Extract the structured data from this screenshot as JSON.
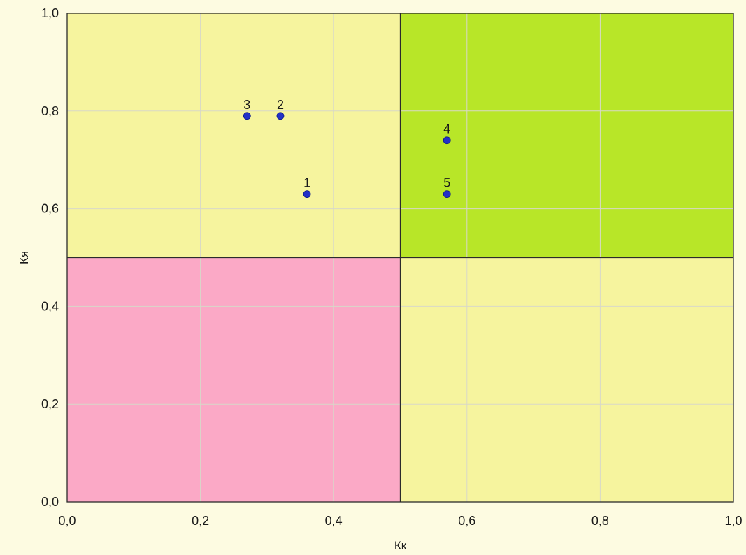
{
  "chart_data": {
    "type": "scatter",
    "xlabel": "Кк",
    "ylabel": "Кя",
    "xlim": [
      0,
      1
    ],
    "ylim": [
      0,
      1
    ],
    "x_ticks": [
      "0,0",
      "0,2",
      "0,4",
      "0,6",
      "0,8",
      "1,0"
    ],
    "y_ticks": [
      "0,0",
      "0,2",
      "0,4",
      "0,6",
      "0,8",
      "1,0"
    ],
    "tick_values": [
      0,
      0.2,
      0.4,
      0.6,
      0.8,
      1.0
    ],
    "grid": true,
    "quadrants": [
      {
        "x": [
          0,
          0.5
        ],
        "y": [
          0.5,
          1
        ],
        "color": "#f6f49e"
      },
      {
        "x": [
          0.5,
          1
        ],
        "y": [
          0.5,
          1
        ],
        "color": "#b8e628"
      },
      {
        "x": [
          0,
          0.5
        ],
        "y": [
          0,
          0.5
        ],
        "color": "#fba9c6"
      },
      {
        "x": [
          0.5,
          1
        ],
        "y": [
          0,
          0.5
        ],
        "color": "#f6f49e"
      }
    ],
    "dividers": {
      "x": 0.5,
      "y": 0.5
    },
    "points": [
      {
        "label": "1",
        "x": 0.36,
        "y": 0.63
      },
      {
        "label": "2",
        "x": 0.32,
        "y": 0.79
      },
      {
        "label": "3",
        "x": 0.27,
        "y": 0.79
      },
      {
        "label": "4",
        "x": 0.57,
        "y": 0.74
      },
      {
        "label": "5",
        "x": 0.57,
        "y": 0.63
      }
    ],
    "point_color": "#2230c8"
  }
}
